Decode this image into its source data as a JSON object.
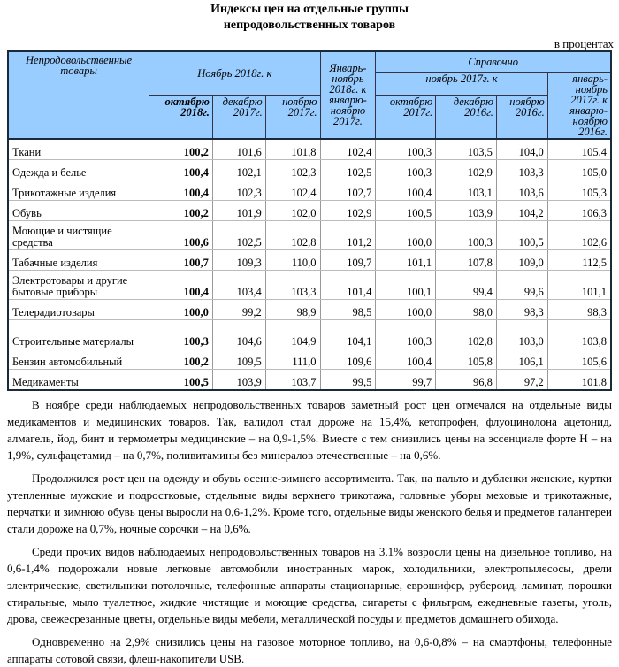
{
  "title": [
    "Индексы цен на отдельные группы",
    "непродовольственных товаров"
  ],
  "unit": "в процентах",
  "header": {
    "name": "Непродовольственные товары",
    "nov2018": "Ноябрь 2018г. к",
    "jan_nov2018": "Январь-ноябрь 2018г. к январю-ноябрю 2017г.",
    "ref": "Справочно",
    "nov2017": "ноябрь 2017г. к",
    "jan_nov2017": "январь-ноябрь 2017г. к январю-ноябрю 2016г.",
    "oct2018": "октябрю 2018г.",
    "dec2017": "декабрю 2017г.",
    "nov2017b": "ноябрю 2017г.",
    "oct2017": "октябрю 2017г.",
    "dec2016": "декабрю 2016г.",
    "nov2016": "ноябрю 2016г."
  },
  "rows": [
    {
      "name": "Ткани",
      "v": [
        "100,2",
        "101,6",
        "101,8",
        "102,4",
        "100,3",
        "103,5",
        "104,0",
        "105,4"
      ]
    },
    {
      "name": "Одежда и белье",
      "v": [
        "100,4",
        "102,1",
        "102,3",
        "102,5",
        "100,3",
        "102,9",
        "103,3",
        "105,0"
      ]
    },
    {
      "name": "Трикотажные изделия",
      "v": [
        "100,4",
        "102,3",
        "102,4",
        "102,7",
        "100,4",
        "103,1",
        "103,6",
        "105,3"
      ]
    },
    {
      "name": "Обувь",
      "v": [
        "100,2",
        "101,9",
        "102,0",
        "102,9",
        "100,5",
        "103,9",
        "104,2",
        "106,3"
      ]
    },
    {
      "name": "Моющие и чистящие средства",
      "v": [
        "100,6",
        "102,5",
        "102,8",
        "101,2",
        "100,0",
        "100,3",
        "100,5",
        "102,6"
      ]
    },
    {
      "name": "Табачные изделия",
      "v": [
        "100,7",
        "109,3",
        "110,0",
        "109,7",
        "101,1",
        "107,8",
        "109,0",
        "112,5"
      ]
    },
    {
      "name": "Электротовары и другие бытовые приборы",
      "v": [
        "100,4",
        "103,4",
        "103,3",
        "101,4",
        "100,1",
        "99,4",
        "99,6",
        "101,1"
      ]
    },
    {
      "name": "Телерадиотовары",
      "v": [
        "100,0",
        "99,2",
        "98,9",
        "98,5",
        "100,0",
        "98,0",
        "98,3",
        "98,3"
      ]
    },
    {
      "name": "Строительные материалы",
      "v": [
        "100,3",
        "104,6",
        "104,9",
        "104,1",
        "100,3",
        "102,8",
        "103,0",
        "103,8"
      ]
    },
    {
      "name": "Бензин автомобильный",
      "v": [
        "100,2",
        "109,5",
        "111,0",
        "109,6",
        "100,4",
        "105,8",
        "106,1",
        "105,6"
      ]
    },
    {
      "name": "Медикаменты",
      "v": [
        "100,5",
        "103,9",
        "103,7",
        "99,5",
        "99,7",
        "96,8",
        "97,2",
        "101,8"
      ]
    }
  ],
  "paragraphs": [
    "В ноябре среди наблюдаемых непродовольственных товаров заметный рост цен отмечался на отдельные виды медикаментов и медицинских товаров. Так, валидол стал дороже на 15,4%, кетопрофен, флуоцинолона ацетонид, алмагель, йод, бинт и термометры медицинские – на 0,9-1,5%. Вместе с тем снизились цены на эссенциале форте Н – на 1,9%, сульфацетамид – на 0,7%, поливитамины без минералов отечественные – на 0,6%.",
    "Продолжился рост цен на одежду и обувь осенне-зимнего ассортимента. Так, на пальто и дубленки женские, куртки утепленные мужские и подростковые, отдельные виды верхнего трикотажа, головные уборы меховые и трикотажные, перчатки и зимнюю обувь цены выросли на 0,6-1,2%. Кроме того, отдельные виды женского белья и предметов галантереи стали дороже на 0,7%, ночные сорочки – на 0,6%.",
    "Среди прочих видов наблюдаемых непродовольственных товаров на 3,1% возросли цены на дизельное топливо, на 0,6-1,4% подорожали новые легковые автомобили иностранных марок, холодильники, электропылесосы, дрели электрические, светильники потолочные, телефонные аппараты стационарные, еврошифер, рубероид, ламинат, порошки стиральные, мыло туалетное, жидкие чистящие и моющие средства, сигареты с фильтром, ежедневные газеты, уголь, дрова, свежесрезанные цветы, отдельные виды мебели, металлической посуды и предметов домашнего обихода.",
    "Одновременно на 2,9% снизились цены на газовое моторное топливо, на 0,6-0,8% – на смартфоны, телефонные аппараты сотовой связи, флеш-накопители USB."
  ]
}
